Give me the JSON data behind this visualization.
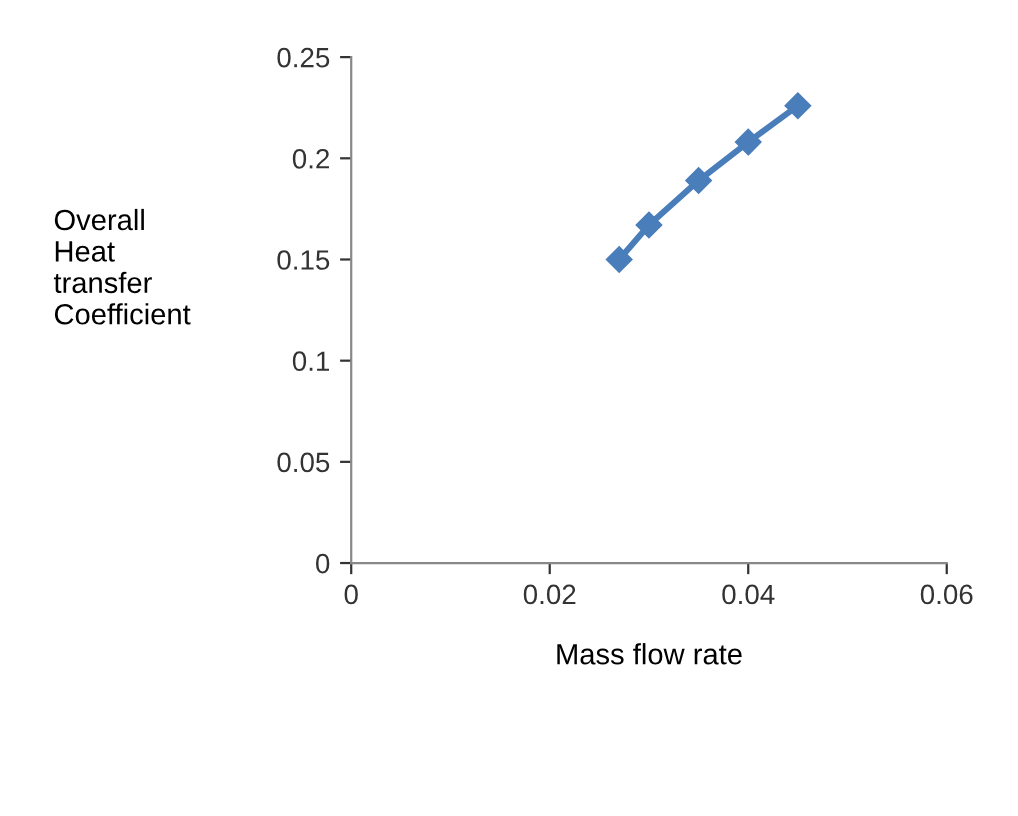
{
  "chart_data": {
    "type": "line",
    "xlabel": "Mass flow rate",
    "ylabel": "Overall\nHeat\ntransfer\nCoefficient",
    "x": [
      0.027,
      0.03,
      0.035,
      0.04,
      0.045
    ],
    "series": [
      {
        "color": "#4a7ebb",
        "values": [
          0.15,
          0.167,
          0.189,
          0.208,
          0.226
        ]
      }
    ],
    "xlim": [
      0,
      0.06
    ],
    "xticks": [
      0,
      0.02,
      0.04,
      0.06
    ],
    "ylim": [
      0,
      0.25
    ],
    "yticks": [
      0,
      0.05,
      0.1,
      0.15,
      0.2,
      0.25
    ],
    "marker": "diamond",
    "line_style": "solid",
    "grid": false,
    "legend": false
  }
}
